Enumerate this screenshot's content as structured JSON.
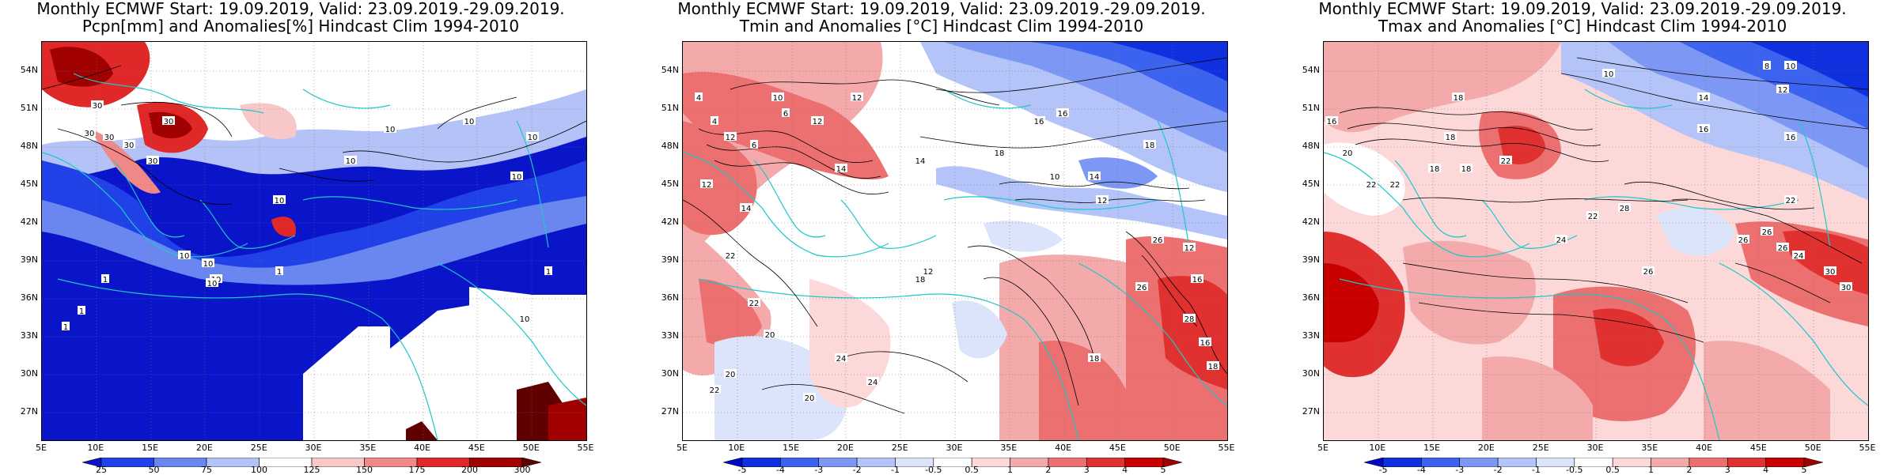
{
  "panels": [
    {
      "title1": "Monthly ECMWF Start: 19.09.2019, Valid: 23.09.2019.-29.09.2019.",
      "title2": "Pcpn[mm] and Anomalies[%] Hindcast Clim 1994-2010",
      "colorbar": {
        "labels": [
          "25",
          "50",
          "75",
          "100",
          "125",
          "150",
          "175",
          "200",
          "300"
        ],
        "colors": [
          "#0a14c8",
          "#2040e8",
          "#6a86f0",
          "#b4c2f8",
          "#ffffff",
          "#f8c8c8",
          "#f08888",
          "#e02828",
          "#a00000",
          "#600000"
        ]
      },
      "contour_labels": [
        "30",
        "30",
        "30",
        "30",
        "30",
        "10",
        "10",
        "10",
        "10",
        "10",
        "1",
        "1",
        "1",
        "1",
        "10",
        "10",
        "30",
        "10",
        "10",
        "10",
        "10",
        "1"
      ]
    },
    {
      "title1": "Monthly ECMWF Start: 19.09.2019, Valid: 23.09.2019.-29.09.2019.",
      "title2": "Tmin and Anomalies [°C] Hindcast Clim 1994-2010",
      "colorbar": {
        "labels": [
          "-5",
          "-4",
          "-3",
          "-2",
          "-1",
          "-0.5",
          "0.5",
          "1",
          "2",
          "3",
          "4",
          "5"
        ],
        "colors": [
          "#0008c8",
          "#1030e0",
          "#3c62f0",
          "#7c98f4",
          "#b4c4f8",
          "#dce4fc",
          "#ffffff",
          "#fcd8d8",
          "#f4aaaa",
          "#ec7070",
          "#e03030",
          "#c80000",
          "#a00000"
        ]
      },
      "contour_labels": [
        "4",
        "4",
        "12",
        "6",
        "6",
        "12",
        "12",
        "12",
        "14",
        "14",
        "14",
        "14",
        "18",
        "18",
        "16",
        "16",
        "10",
        "10",
        "12",
        "12",
        "22",
        "22",
        "20",
        "20",
        "24",
        "24",
        "18",
        "20",
        "22",
        "26",
        "26",
        "12",
        "16",
        "28",
        "18",
        "16",
        "18"
      ]
    },
    {
      "title1": "Monthly ECMWF Start: 19.09.2019, Valid: 23.09.2019.-29.09.2019.",
      "title2": "Tmax and Anomalies [°C] Hindcast Clim 1994-2010",
      "colorbar": {
        "labels": [
          "-5",
          "-4",
          "-3",
          "-2",
          "-1",
          "-0.5",
          "0.5",
          "1",
          "2",
          "3",
          "4",
          "5"
        ],
        "colors": [
          "#0008c8",
          "#1030e0",
          "#3c62f0",
          "#7c98f4",
          "#b4c4f8",
          "#dce4fc",
          "#ffffff",
          "#fcd8d8",
          "#f4aaaa",
          "#ec7070",
          "#e03030",
          "#c80000",
          "#a00000"
        ]
      },
      "contour_labels": [
        "10",
        "8",
        "10",
        "14",
        "12",
        "16",
        "18",
        "18",
        "16",
        "16",
        "20",
        "22",
        "22",
        "18",
        "18",
        "22",
        "24",
        "22",
        "26",
        "26",
        "24",
        "30",
        "30",
        "26",
        "26",
        "22",
        "28"
      ]
    }
  ],
  "lat_labels": [
    "54N",
    "51N",
    "48N",
    "45N",
    "42N",
    "39N",
    "36N",
    "33N",
    "30N",
    "27N"
  ],
  "lon_labels": [
    "5E",
    "10E",
    "15E",
    "20E",
    "25E",
    "30E",
    "35E",
    "40E",
    "45E",
    "50E",
    "55E"
  ]
}
